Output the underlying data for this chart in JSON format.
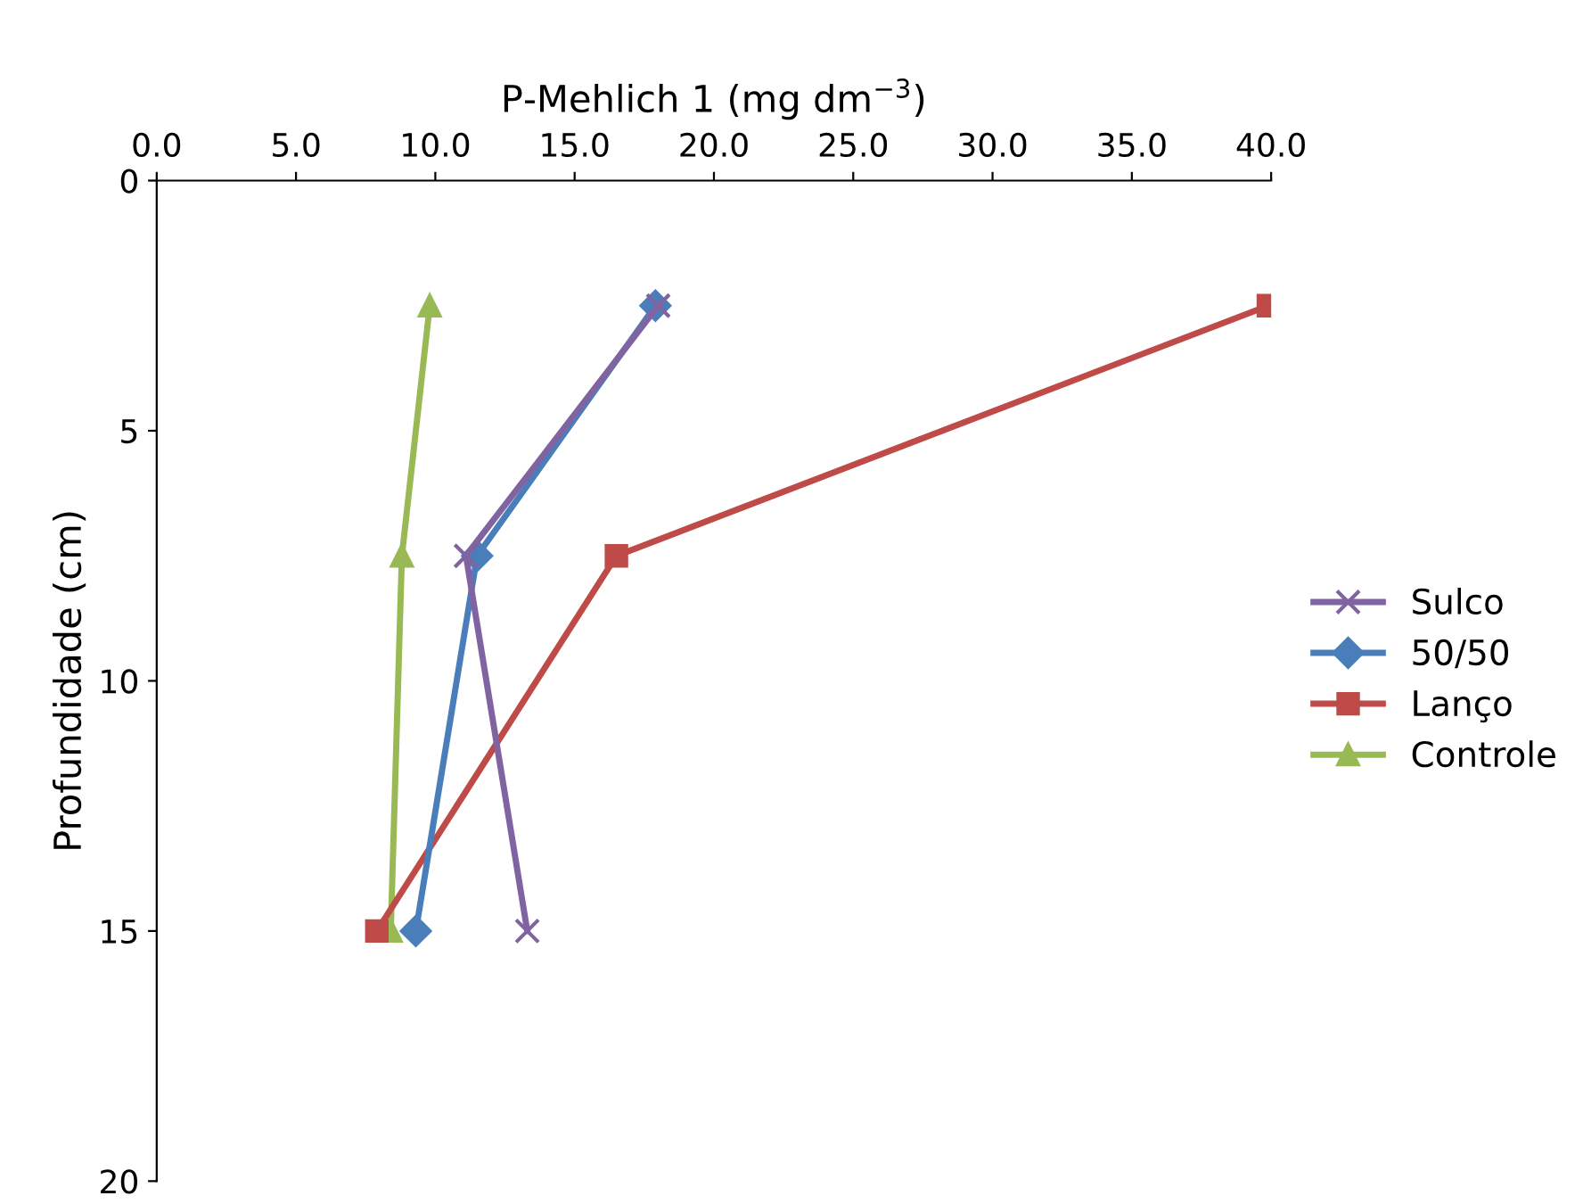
{
  "chart_data": {
    "type": "line",
    "xlabel": "P-Mehlich 1 (mg dm$^{−3}$)",
    "ylabel": "Profundidade (cm)",
    "xlim": [
      0,
      40
    ],
    "xticks": [
      {
        "value": 0,
        "label": "0.0"
      },
      {
        "value": 5,
        "label": "5.0"
      },
      {
        "value": 10,
        "label": "10.0"
      },
      {
        "value": 15,
        "label": "15.0"
      },
      {
        "value": 20,
        "label": "20.0"
      },
      {
        "value": 25,
        "label": "25.0"
      },
      {
        "value": 30,
        "label": "30.0"
      },
      {
        "value": 35,
        "label": "35.0"
      },
      {
        "value": 40,
        "label": "40.0"
      }
    ],
    "ylim": [
      20,
      0
    ],
    "yticks": [
      0,
      5,
      10,
      15,
      20
    ],
    "legend": "right",
    "series": [
      {
        "name": "Sulco",
        "color": "#8064a2",
        "marker": "cross",
        "x": [
          18.0,
          11.1,
          13.3
        ],
        "values": [
          2.5,
          7.5,
          15
        ]
      },
      {
        "name": "50/50",
        "color": "#4a7ebb",
        "marker": "diamond",
        "x": [
          17.9,
          11.5,
          9.3
        ],
        "values": [
          2.5,
          7.5,
          15
        ]
      },
      {
        "name": "Lanço",
        "color": "#be4b48",
        "marker": "square",
        "x": [
          39.9,
          16.5,
          7.9
        ],
        "values": [
          2.5,
          7.5,
          15
        ]
      },
      {
        "name": "Controle",
        "color": "#98b954",
        "marker": "triangle",
        "x": [
          9.8,
          8.8,
          8.4
        ],
        "values": [
          2.5,
          7.5,
          15
        ]
      }
    ]
  }
}
